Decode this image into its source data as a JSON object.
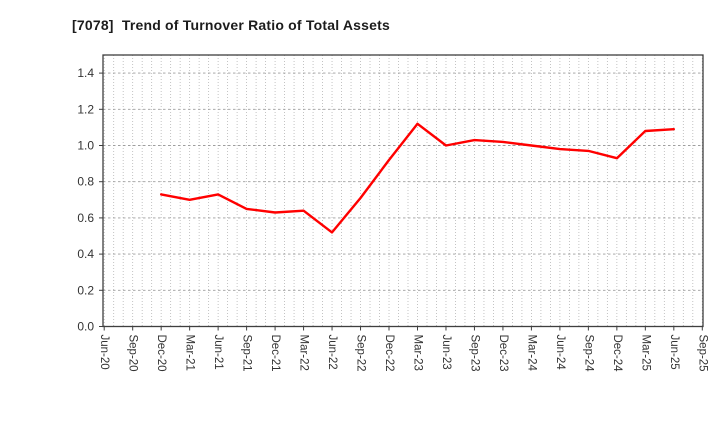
{
  "window": {
    "title": "[7078]  Trend of Turnover Ratio of Total Assets"
  },
  "chart_data": {
    "type": "line",
    "title": "[7078]  Trend of Turnover Ratio of Total Assets",
    "xlabel": "",
    "ylabel": "",
    "categories": [
      "Jun-20",
      "Sep-20",
      "Dec-20",
      "Mar-21",
      "Jun-21",
      "Sep-21",
      "Dec-21",
      "Mar-22",
      "Jun-22",
      "Sep-22",
      "Dec-22",
      "Mar-23",
      "Jun-23",
      "Sep-23",
      "Dec-23",
      "Mar-24",
      "Jun-24",
      "Sep-24",
      "Dec-24",
      "Mar-25",
      "Jun-25",
      "Sep-25"
    ],
    "series": [
      {
        "name": "Turnover Ratio of Total Assets",
        "color": "#ff0000",
        "values": [
          null,
          null,
          0.73,
          0.7,
          0.73,
          0.65,
          0.63,
          0.64,
          0.52,
          0.71,
          0.92,
          1.12,
          1.0,
          1.03,
          1.02,
          1.0,
          0.98,
          0.97,
          0.93,
          1.08,
          1.09,
          null
        ]
      }
    ],
    "ylim": [
      0,
      1.5
    ],
    "ytick_step": 0.2,
    "ytick_labels": [
      "0.0",
      "0.2",
      "0.4",
      "0.6",
      "0.8",
      "1.0",
      "1.2",
      "1.4"
    ],
    "grid": "on",
    "x_minor_divisions_per_interval": 3,
    "legend": "none"
  },
  "colors": {
    "background": "#ffffff",
    "line": "#ff0000",
    "plot_border": "#3f3f3f",
    "grid_vertical": "#b5b5b5",
    "grid_horizontal": "#9e9e9e",
    "tick_label": "#333333",
    "title": "#1c1c1c"
  }
}
